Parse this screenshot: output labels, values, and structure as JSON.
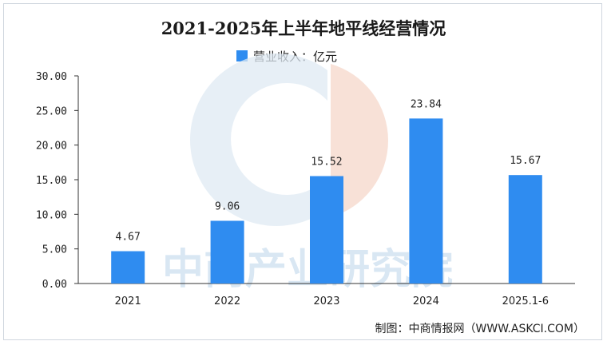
{
  "chart_data": {
    "type": "bar",
    "title": "2021-2025年上半年地平线经营情况",
    "categories": [
      "2021",
      "2022",
      "2023",
      "2024",
      "2025.1-6"
    ],
    "series": [
      {
        "name": "营业收入：亿元",
        "values": [
          4.67,
          9.06,
          15.52,
          23.84,
          15.67
        ]
      }
    ],
    "data_labels": [
      "4.67",
      "9.06",
      "15.52",
      "23.84",
      "15.67"
    ],
    "y_ticks": [
      "0.00",
      "5.00",
      "10.00",
      "15.00",
      "20.00",
      "25.00",
      "30.00"
    ],
    "ylim": [
      0,
      30
    ],
    "xlabel": "",
    "ylabel": "",
    "grid": false,
    "legend_position": "top",
    "bar_color": "#2f8cf0"
  },
  "source": "制图：中商情报网（WWW.ASKCI.COM）",
  "watermark": "中商产业研究院"
}
